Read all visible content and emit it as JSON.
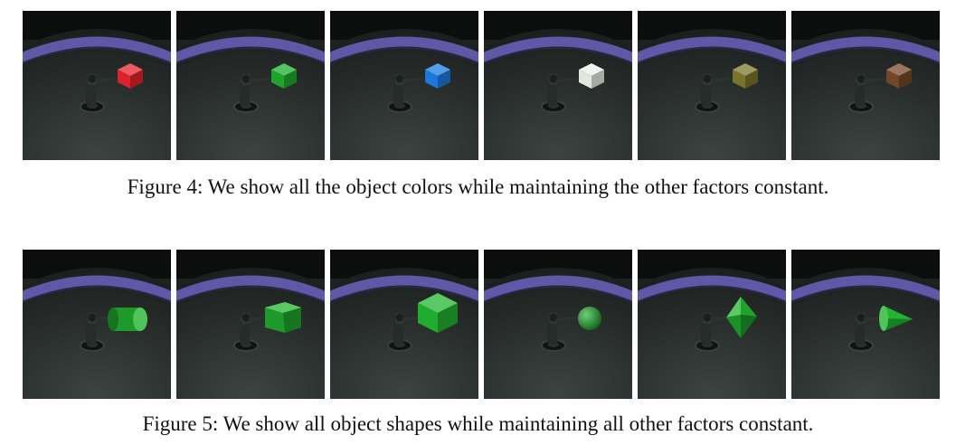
{
  "figures": [
    {
      "id": "fig4",
      "caption": "Figure 4: We show all the object colors while maintaining the other factors constant.",
      "panels": [
        {
          "shape": "cube",
          "color": "#e8242e"
        },
        {
          "shape": "cube",
          "color": "#1fae2c"
        },
        {
          "shape": "cube",
          "color": "#1c7ee6"
        },
        {
          "shape": "cube",
          "color": "#eef2ea"
        },
        {
          "shape": "cube",
          "color": "#7d7a2c"
        },
        {
          "shape": "cube",
          "color": "#7a4a2a"
        }
      ]
    },
    {
      "id": "fig5",
      "caption": "Figure 5: We show all object shapes while maintaining all other factors constant.",
      "panels": [
        {
          "shape": "cylinder",
          "color": "#22b531"
        },
        {
          "shape": "hexagonal-prism",
          "color": "#22b531"
        },
        {
          "shape": "large-cube",
          "color": "#22b531"
        },
        {
          "shape": "sphere",
          "color": "#22b531"
        },
        {
          "shape": "octahedron",
          "color": "#22b531"
        },
        {
          "shape": "cone",
          "color": "#22b531"
        }
      ]
    }
  ]
}
